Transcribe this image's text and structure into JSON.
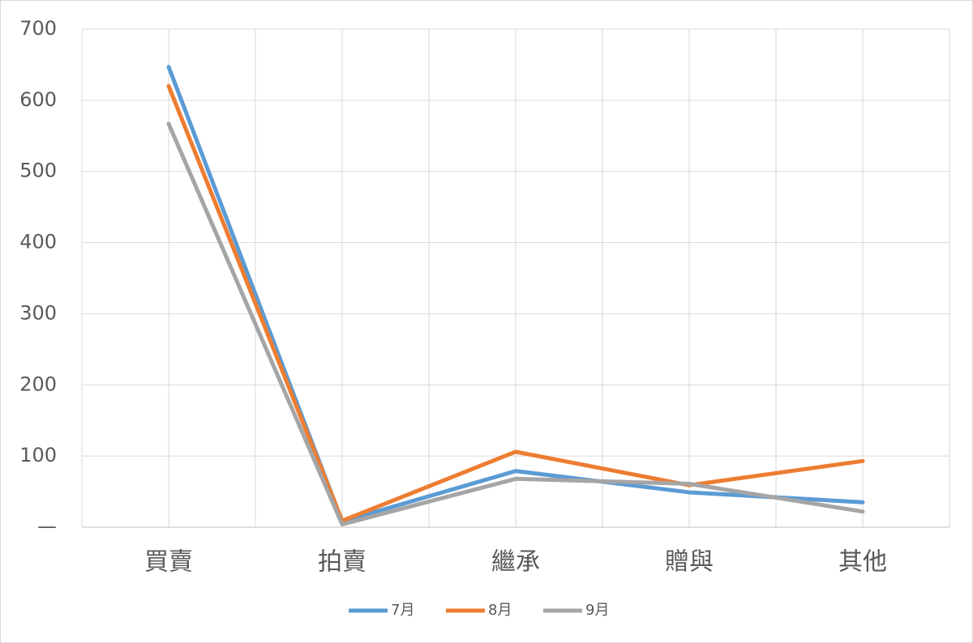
{
  "chart_data": {
    "type": "line",
    "categories": [
      "買賣",
      "拍賣",
      "繼承",
      "贈與",
      "其他"
    ],
    "series": [
      {
        "name": "7月",
        "color": "#5b9bd5",
        "values": [
          647,
          8,
          79,
          49,
          35
        ]
      },
      {
        "name": "8月",
        "color": "#ed7d31",
        "values": [
          620,
          9,
          106,
          59,
          93
        ]
      },
      {
        "name": "9月",
        "color": "#a5a5a5",
        "values": [
          567,
          4,
          68,
          61,
          22
        ]
      }
    ],
    "ylim": [
      0,
      700
    ],
    "yticks": [
      {
        "value": 0,
        "label": "—"
      },
      100,
      200,
      300,
      400,
      500,
      600,
      700
    ],
    "grid": true,
    "legend": "bottom"
  }
}
